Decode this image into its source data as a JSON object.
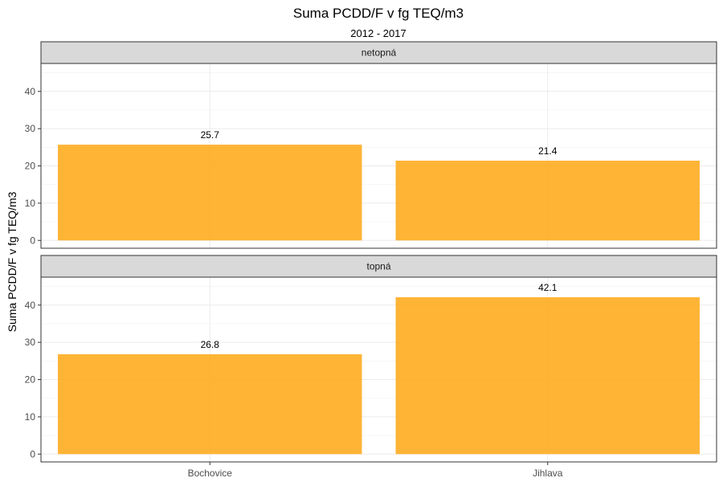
{
  "chart_data": {
    "type": "bar",
    "title": "Suma PCDD/F v fg TEQ/m3",
    "subtitle": "2012 - 2017",
    "xlabel": "",
    "ylabel": "Suma PCDD/F v fg TEQ/m3",
    "categories": [
      "Bochovice",
      "Jihlava"
    ],
    "yticks": [
      0,
      10,
      20,
      30,
      40
    ],
    "ylim": [
      -2.1,
      47.5
    ],
    "grid": true,
    "bar_color": "#FFAA1A",
    "facets": [
      {
        "name": "netopná",
        "values": [
          25.7,
          21.4
        ],
        "labels": [
          "25.7",
          "21.4"
        ]
      },
      {
        "name": "topná",
        "values": [
          26.8,
          42.1
        ],
        "labels": [
          "26.8",
          "42.1"
        ]
      }
    ]
  }
}
